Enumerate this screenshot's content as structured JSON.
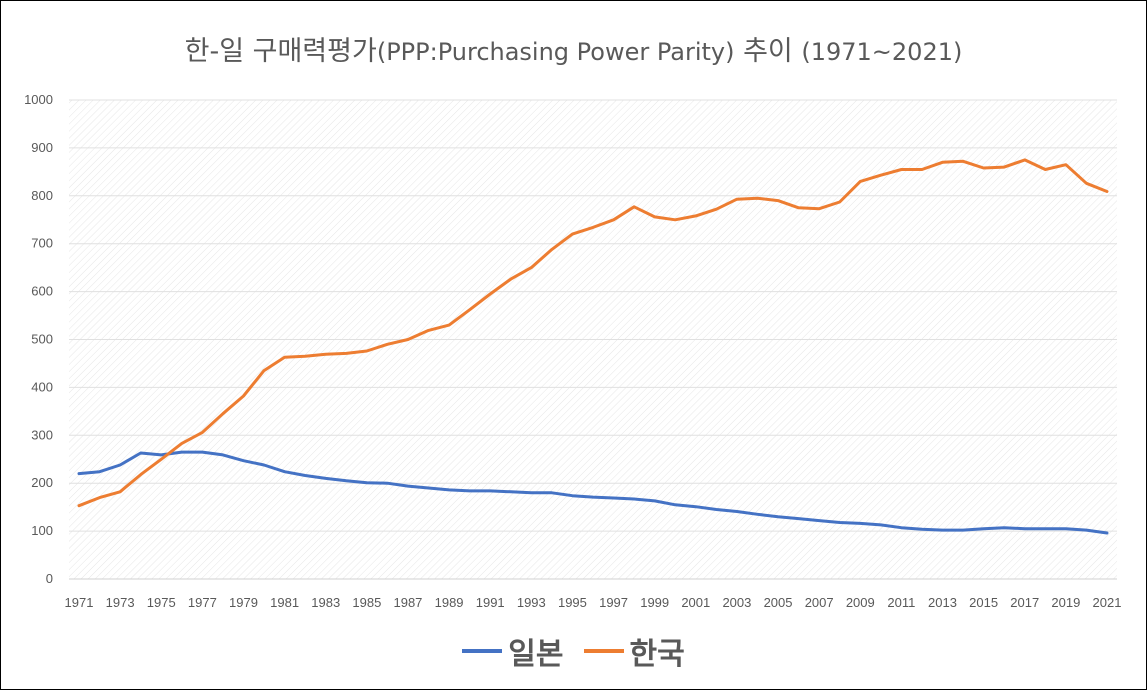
{
  "title_main": "한-일 구매력평가",
  "title_paren": "(PPP:Purchasing Power Parity)",
  "title_tail": "추이",
  "title_range": "(1971~2021)",
  "chart_data": {
    "type": "line",
    "title": "한-일 구매력평가(PPP:Purchasing Power Parity) 추이 (1971~2021)",
    "xlabel": "",
    "ylabel": "",
    "ylim": [
      0,
      1000
    ],
    "yticks": [
      0,
      100,
      200,
      300,
      400,
      500,
      600,
      700,
      800,
      900,
      1000
    ],
    "grid": true,
    "legend_position": "bottom",
    "x": [
      1971,
      1972,
      1973,
      1974,
      1975,
      1976,
      1977,
      1978,
      1979,
      1980,
      1981,
      1982,
      1983,
      1984,
      1985,
      1986,
      1987,
      1988,
      1989,
      1990,
      1991,
      1992,
      1993,
      1994,
      1995,
      1996,
      1997,
      1998,
      1999,
      2000,
      2001,
      2002,
      2003,
      2004,
      2005,
      2006,
      2007,
      2008,
      2009,
      2010,
      2011,
      2012,
      2013,
      2014,
      2015,
      2016,
      2017,
      2018,
      2019,
      2020,
      2021
    ],
    "xtick_labels": [
      "1971",
      "1973",
      "1975",
      "1977",
      "1979",
      "1981",
      "1983",
      "1985",
      "1987",
      "1989",
      "1991",
      "1993",
      "1995",
      "1997",
      "1999",
      "2001",
      "2003",
      "2005",
      "2007",
      "2009",
      "2011",
      "2013",
      "2015",
      "2017",
      "2019",
      "2021"
    ],
    "series": [
      {
        "name": "일본",
        "color": "#4472C4",
        "values": [
          220,
          224,
          238,
          263,
          259,
          265,
          265,
          259,
          247,
          238,
          224,
          216,
          210,
          205,
          201,
          200,
          194,
          190,
          186,
          184,
          184,
          182,
          180,
          180,
          174,
          171,
          169,
          167,
          163,
          155,
          151,
          145,
          141,
          135,
          130,
          126,
          122,
          118,
          116,
          113,
          107,
          104,
          102,
          102,
          105,
          107,
          105,
          105,
          105,
          102,
          96
        ]
      },
      {
        "name": "한국",
        "color": "#ED7D31",
        "values": [
          153,
          170,
          182,
          218,
          250,
          283,
          306,
          345,
          382,
          435,
          463,
          465,
          469,
          471,
          476,
          490,
          500,
          519,
          530,
          562,
          595,
          626,
          650,
          688,
          720,
          734,
          750,
          777,
          756,
          750,
          758,
          772,
          793,
          795,
          790,
          775,
          773,
          787,
          830,
          843,
          855,
          855,
          870,
          872,
          858,
          860,
          875,
          855,
          865,
          826,
          809
        ]
      }
    ]
  }
}
